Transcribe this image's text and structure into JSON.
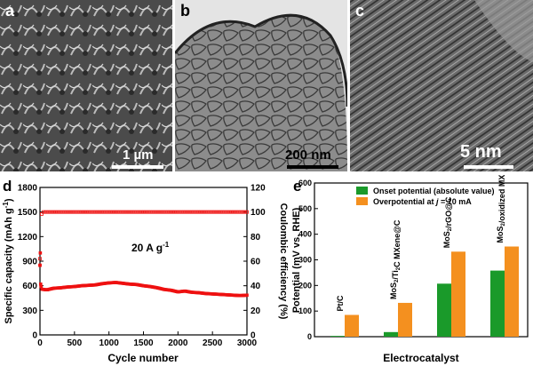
{
  "panels": {
    "a": {
      "letter": "a",
      "scale_label": "1 µm"
    },
    "b": {
      "letter": "b",
      "scale_label": "200 nm"
    },
    "c": {
      "letter": "c",
      "scale_label": "5 nm"
    }
  },
  "chart_data": [
    {
      "panel_letter": "d",
      "type": "scatter",
      "xlabel": "Cycle number",
      "ylabel": "Specific capacity (mAh g",
      "ylabel_sup": "-1",
      "ylabel_close": ")",
      "y2label": "Coulombic efficiency (%)",
      "annotation": "20 A g",
      "annotation_sup": "-1",
      "xlim": [
        0,
        3000
      ],
      "ylim": [
        0,
        1800
      ],
      "y2lim": [
        0,
        120
      ],
      "xticks": [
        "0",
        "500",
        "1000",
        "1500",
        "2000",
        "2500",
        "3000"
      ],
      "yticks": [
        "0",
        "300",
        "600",
        "900",
        "1200",
        "1500",
        "1800"
      ],
      "y2ticks": [
        "0",
        "20",
        "40",
        "60",
        "80",
        "100",
        "120"
      ],
      "series": [
        {
          "axis": "left",
          "color": "#ee1111",
          "marker": "filled-square",
          "x": [
            0,
            5,
            10,
            20,
            50,
            100,
            200,
            300,
            400,
            500,
            600,
            700,
            800,
            900,
            1000,
            1100,
            1200,
            1300,
            1400,
            1500,
            1600,
            1700,
            1800,
            1900,
            2000,
            2100,
            2200,
            2300,
            2400,
            2500,
            2600,
            2700,
            2800,
            2900,
            3000
          ],
          "y": [
            850,
            1000,
            620,
            560,
            555,
            550,
            570,
            575,
            585,
            590,
            600,
            605,
            610,
            625,
            635,
            640,
            630,
            620,
            615,
            600,
            590,
            575,
            555,
            545,
            525,
            535,
            520,
            515,
            505,
            500,
            495,
            490,
            485,
            480,
            485
          ]
        },
        {
          "axis": "right",
          "color": "#ee1111",
          "marker": "open-square",
          "x": [
            0,
            5,
            20,
            50,
            100,
            200,
            300,
            500,
            750,
            1000,
            1250,
            1500,
            1750,
            2000,
            2250,
            2500,
            2750,
            3000
          ],
          "y": [
            62,
            70,
            98,
            100,
            100,
            100,
            100,
            100,
            100,
            100,
            100,
            100,
            100,
            100,
            100,
            100,
            100,
            100
          ]
        }
      ]
    },
    {
      "panel_letter": "e",
      "type": "bar",
      "xlabel": "Electrocatalyst",
      "ylabel": "Potential (mV vs. RHE)",
      "ylim": [
        0,
        600
      ],
      "yticks": [
        "0",
        "100",
        "200",
        "300",
        "400",
        "500",
        "600"
      ],
      "legend_position": "top-right",
      "categories": [
        {
          "base": "Pt/C"
        },
        {
          "base": "MoS",
          "s1": "2",
          "mid": "/Ti",
          "s2": "2",
          "tail": "C MXene@C"
        },
        {
          "base": "MoS",
          "s1": "2",
          "mid": "/rGO@C"
        },
        {
          "base": "MoS",
          "s1": "2",
          "mid": "/oxidized MXene"
        }
      ],
      "series": [
        {
          "name": "Onset potential (absolute value)",
          "color": "#1a9a2a",
          "values": [
            3,
            18,
            207,
            258
          ]
        },
        {
          "name_pre": "Overpotential at ",
          "name_var": "j",
          "name_post": " = 10 mA",
          "color": "#f4901f",
          "values": [
            85,
            132,
            332,
            352
          ]
        }
      ]
    }
  ]
}
